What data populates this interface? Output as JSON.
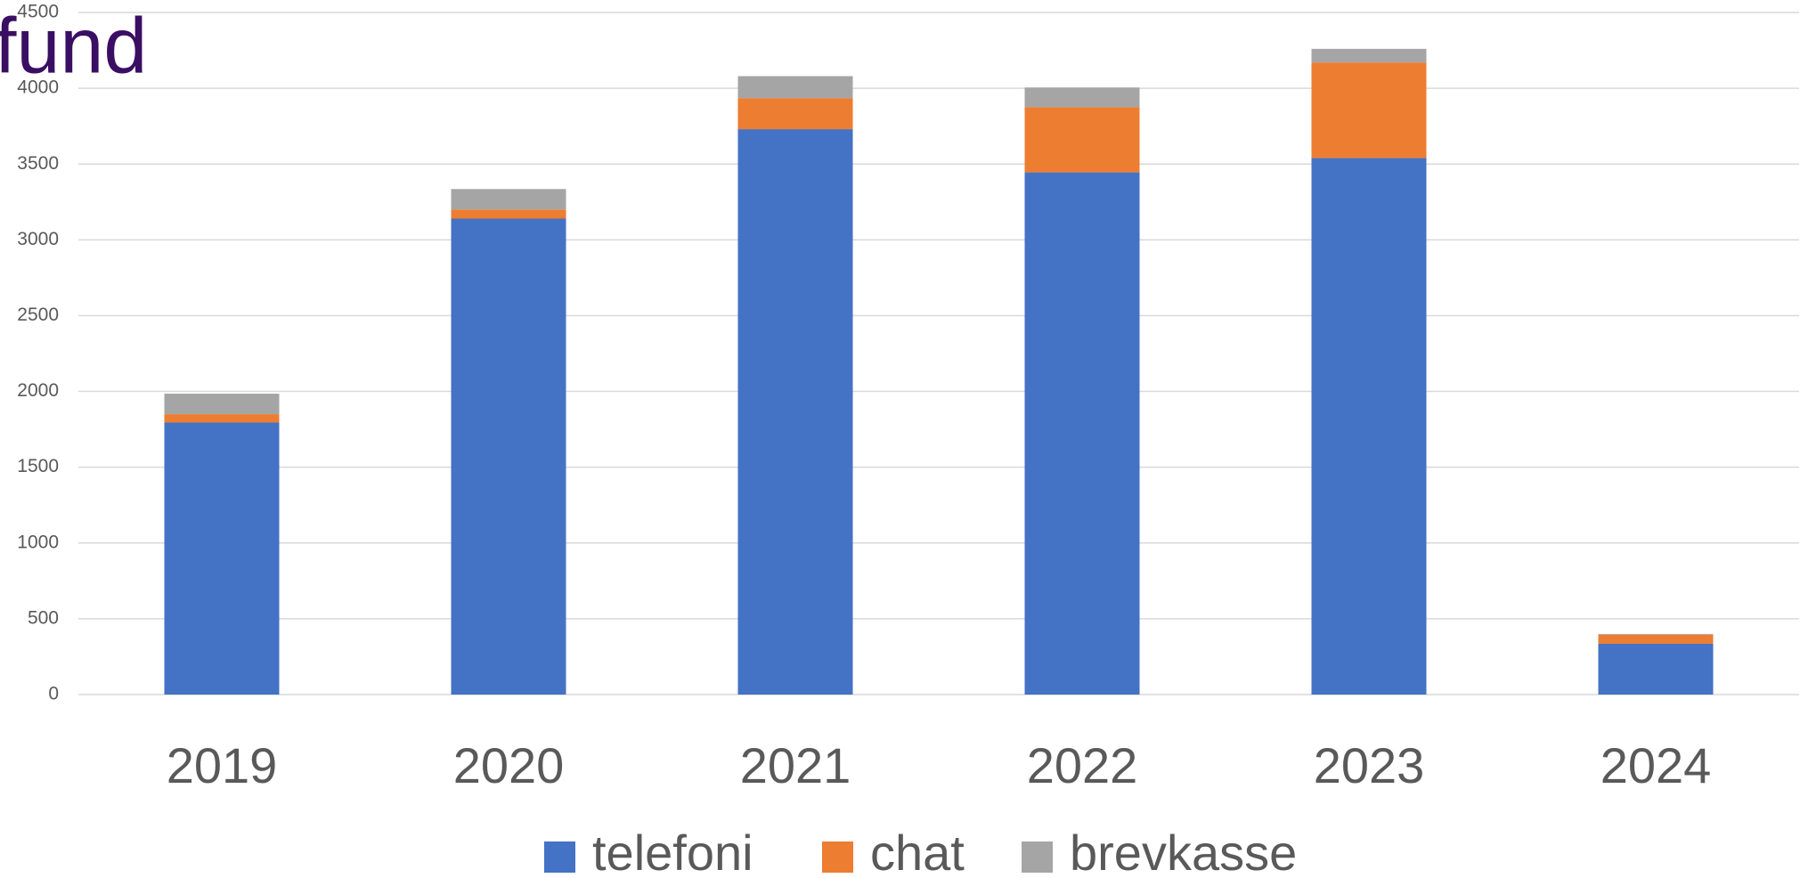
{
  "logo": "fund",
  "chart_data": {
    "type": "bar",
    "stacked": true,
    "categories": [
      "2019",
      "2020",
      "2021",
      "2022",
      "2023",
      "2024"
    ],
    "series": [
      {
        "name": "telefoni",
        "color": "#4472c4",
        "values": [
          1795,
          3140,
          3730,
          3445,
          3540,
          335
        ]
      },
      {
        "name": "chat",
        "color": "#ed7d31",
        "values": [
          55,
          60,
          205,
          430,
          630,
          60
        ]
      },
      {
        "name": "brevkasse",
        "color": "#a5a5a5",
        "values": [
          135,
          135,
          145,
          130,
          90,
          5
        ]
      }
    ],
    "ylim": [
      0,
      4500
    ],
    "yticks": [
      0,
      500,
      1000,
      1500,
      2000,
      2500,
      3000,
      3500,
      4000,
      4500
    ],
    "grid": true,
    "legend": "bottom"
  }
}
